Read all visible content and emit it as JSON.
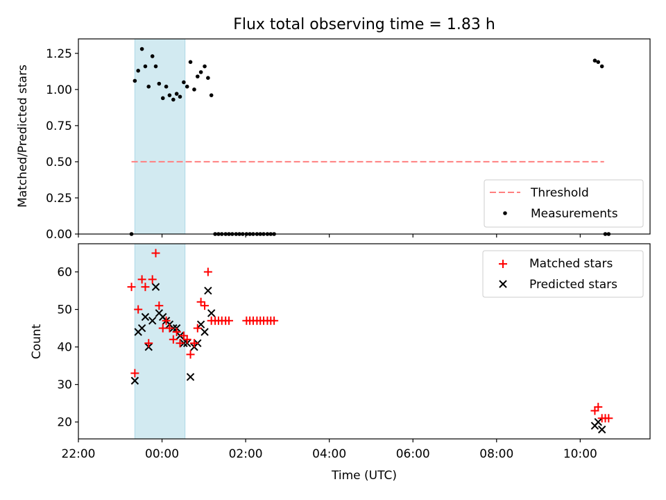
{
  "title": "Flux total observing time = 1.83 h",
  "colors": {
    "shade": "#add8e6",
    "threshold": "#ff7f7f",
    "matched": "#ff0000",
    "predicted": "#000000",
    "measurement": "#000000"
  },
  "chart_data": [
    {
      "type": "scatter",
      "ylabel": "Matched/Predicted stars",
      "xlim_hours": [
        22.0,
        35.67
      ],
      "ylim": [
        0,
        1.35
      ],
      "yticks": [
        0.0,
        0.25,
        0.5,
        0.75,
        1.0,
        1.25
      ],
      "ytick_labels": [
        "0.00",
        "0.25",
        "0.50",
        "0.75",
        "1.00",
        "1.25"
      ],
      "shaded_interval_hours": [
        23.35,
        24.55
      ],
      "threshold": {
        "name": "Threshold",
        "value": 0.5,
        "x_hours": [
          23.27,
          34.57
        ]
      },
      "legend": [
        "Threshold",
        "Measurements"
      ],
      "legend_position": "lower right",
      "series": [
        {
          "name": "Measurements",
          "x_hours": [
            23.27,
            23.35,
            23.43,
            23.52,
            23.6,
            23.68,
            23.77,
            23.85,
            23.93,
            24.02,
            24.1,
            24.18,
            24.27,
            24.35,
            24.43,
            24.52,
            24.6,
            24.68,
            24.77,
            24.85,
            24.93,
            25.02,
            25.1,
            25.18,
            25.27,
            25.35,
            25.43,
            25.52,
            25.6,
            25.68,
            25.77,
            25.85,
            25.93,
            26.02,
            26.1,
            26.18,
            26.27,
            26.35,
            26.43,
            26.52,
            26.6,
            26.68,
            34.35,
            34.43,
            34.52,
            34.6,
            34.68
          ],
          "y": [
            0,
            1.06,
            1.13,
            1.28,
            1.16,
            1.02,
            1.23,
            1.16,
            1.04,
            0.94,
            1.02,
            0.96,
            0.93,
            0.97,
            0.95,
            1.05,
            1.02,
            1.19,
            1.0,
            1.09,
            1.12,
            1.16,
            1.08,
            0.96,
            0,
            0,
            0,
            0,
            0,
            0,
            0,
            0,
            0,
            0,
            0,
            0,
            0,
            0,
            0,
            0,
            0,
            0,
            1.2,
            1.19,
            1.16,
            0,
            0
          ]
        }
      ]
    },
    {
      "type": "scatter",
      "xlabel": "Time (UTC)",
      "ylabel": "Count",
      "xlim_hours": [
        22.0,
        35.67
      ],
      "ylim": [
        15.5,
        67.5
      ],
      "yticks": [
        20,
        30,
        40,
        50,
        60
      ],
      "xticks_hours": [
        22,
        24,
        26,
        28,
        30,
        32,
        34
      ],
      "xtick_labels": [
        "22:00",
        "00:00",
        "02:00",
        "04:00",
        "06:00",
        "08:00",
        "10:00"
      ],
      "shaded_interval_hours": [
        23.35,
        24.55
      ],
      "legend": [
        "Matched stars",
        "Predicted stars"
      ],
      "legend_position": "upper right",
      "series": [
        {
          "name": "Matched stars",
          "marker": "+",
          "x_hours": [
            23.27,
            23.35,
            23.43,
            23.52,
            23.6,
            23.68,
            23.77,
            23.85,
            23.93,
            24.02,
            24.1,
            24.18,
            24.27,
            24.35,
            24.43,
            24.52,
            24.6,
            24.68,
            24.77,
            24.85,
            24.93,
            25.02,
            25.1,
            25.18,
            25.27,
            25.35,
            25.43,
            25.52,
            25.6,
            26.02,
            26.1,
            26.18,
            26.27,
            26.35,
            26.43,
            26.52,
            26.6,
            26.68,
            34.35,
            34.43,
            34.52,
            34.6,
            34.68
          ],
          "y": [
            56,
            33,
            50,
            58,
            56,
            41,
            58,
            65,
            51,
            45,
            47,
            45,
            42,
            44,
            41,
            43,
            42,
            38,
            41,
            45,
            52,
            51,
            60,
            47,
            47,
            47,
            47,
            47,
            47,
            47,
            47,
            47,
            47,
            47,
            47,
            47,
            47,
            47,
            23,
            24,
            21,
            21,
            21
          ]
        },
        {
          "name": "Predicted stars",
          "marker": "x",
          "x_hours": [
            23.35,
            23.43,
            23.52,
            23.6,
            23.68,
            23.77,
            23.85,
            23.93,
            24.02,
            24.1,
            24.18,
            24.27,
            24.35,
            24.43,
            24.52,
            24.6,
            24.68,
            24.77,
            24.85,
            24.93,
            25.02,
            25.1,
            25.18,
            34.35,
            34.43,
            34.52
          ],
          "y": [
            31,
            44,
            45,
            48,
            40,
            47,
            56,
            49,
            48,
            47,
            46,
            45,
            45,
            43,
            41,
            41,
            32,
            40,
            41,
            46,
            44,
            55,
            49,
            19,
            20,
            18
          ]
        }
      ]
    }
  ]
}
